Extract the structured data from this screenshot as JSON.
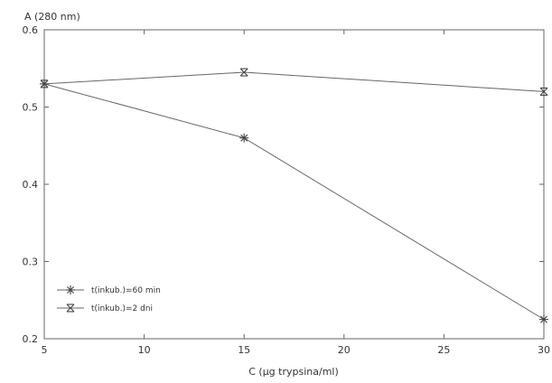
{
  "chart_data": {
    "type": "line",
    "title": "",
    "xlabel": "C (µg trypsina/ml)",
    "ylabel": "A (280 nm)",
    "xlim": [
      5,
      30
    ],
    "ylim": [
      0.2,
      0.6
    ],
    "x_ticks": [
      5,
      10,
      15,
      20,
      25,
      30
    ],
    "y_ticks": [
      0.2,
      0.3,
      0.4,
      0.5,
      0.6
    ],
    "x_tick_labels": [
      "5",
      "10",
      "15",
      "20",
      "25",
      "30"
    ],
    "y_tick_labels": [
      "0.2",
      "0.3",
      "0.4",
      "0.5",
      "0.6"
    ],
    "grid": false,
    "legend_position": "bottom-left",
    "series": [
      {
        "name": "t(inkub.)=60 min",
        "marker": "asterisk",
        "x": [
          5,
          15,
          30
        ],
        "y": [
          0.53,
          0.46,
          0.225
        ]
      },
      {
        "name": "t(inkub.)=2 dni",
        "marker": "x-bar",
        "x": [
          5,
          15,
          30
        ],
        "y": [
          0.53,
          0.545,
          0.52
        ]
      }
    ]
  }
}
